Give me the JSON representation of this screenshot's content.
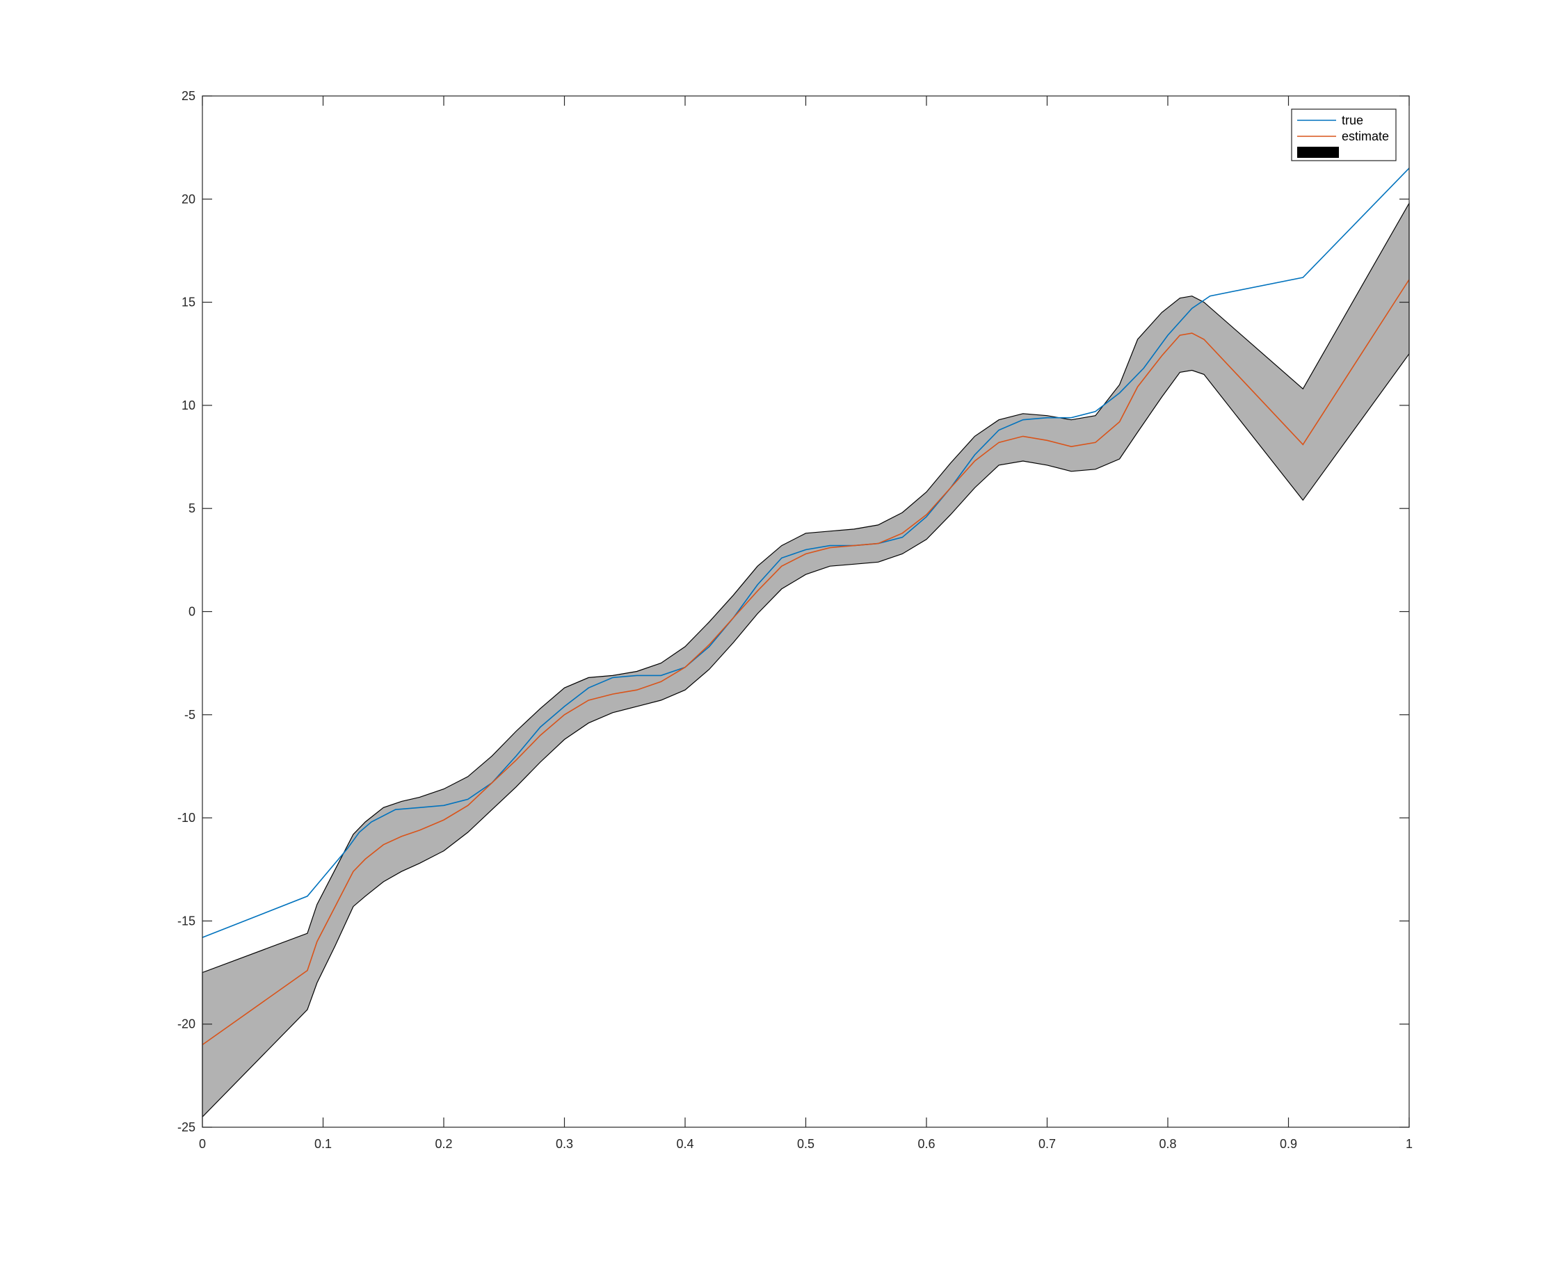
{
  "chart_data": {
    "type": "line",
    "title": "",
    "xlabel": "",
    "ylabel": "",
    "xlim": [
      0,
      1
    ],
    "ylim": [
      -25,
      25
    ],
    "xticks": [
      0,
      0.1,
      0.2,
      0.3,
      0.4,
      0.5,
      0.6,
      0.7,
      0.8,
      0.9,
      1
    ],
    "xtick_labels": [
      "0",
      "0.1",
      "0.2",
      "0.3",
      "0.4",
      "0.5",
      "0.6",
      "0.7",
      "0.8",
      "0.9",
      "1"
    ],
    "yticks": [
      -25,
      -20,
      -15,
      -10,
      -5,
      0,
      5,
      10,
      15,
      20,
      25
    ],
    "ytick_labels": [
      "-25",
      "-20",
      "-15",
      "-10",
      "-5",
      "0",
      "5",
      "10",
      "15",
      "20",
      "25"
    ],
    "grid": false,
    "legend_position": "top-right",
    "band": {
      "name": "",
      "fill_color": "#b2b2b2",
      "edge_color": "#000000",
      "x": [
        0,
        0.087,
        0.095,
        0.11,
        0.125,
        0.135,
        0.15,
        0.165,
        0.18,
        0.2,
        0.22,
        0.24,
        0.26,
        0.28,
        0.3,
        0.32,
        0.34,
        0.36,
        0.38,
        0.4,
        0.42,
        0.44,
        0.46,
        0.48,
        0.5,
        0.52,
        0.54,
        0.56,
        0.58,
        0.6,
        0.62,
        0.64,
        0.66,
        0.68,
        0.7,
        0.72,
        0.74,
        0.76,
        0.775,
        0.795,
        0.81,
        0.82,
        0.83,
        0.912,
        1
      ],
      "upper": [
        -17.5,
        -15.6,
        -14.2,
        -12.5,
        -10.8,
        -10.2,
        -9.5,
        -9.2,
        -9.0,
        -8.6,
        -8.0,
        -7.0,
        -5.8,
        -4.7,
        -3.7,
        -3.2,
        -3.1,
        -2.9,
        -2.5,
        -1.7,
        -0.5,
        0.8,
        2.2,
        3.2,
        3.8,
        3.9,
        4.0,
        4.2,
        4.8,
        5.8,
        7.2,
        8.5,
        9.3,
        9.6,
        9.5,
        9.3,
        9.5,
        11.0,
        13.2,
        14.5,
        15.2,
        15.3,
        15.0,
        10.8,
        19.8
      ],
      "lower": [
        -24.5,
        -19.3,
        -18.0,
        -16.2,
        -14.3,
        -13.8,
        -13.1,
        -12.6,
        -12.2,
        -11.6,
        -10.7,
        -9.6,
        -8.5,
        -7.3,
        -6.2,
        -5.4,
        -4.9,
        -4.6,
        -4.3,
        -3.8,
        -2.8,
        -1.5,
        -0.1,
        1.1,
        1.8,
        2.2,
        2.3,
        2.4,
        2.8,
        3.5,
        4.7,
        6.0,
        7.1,
        7.3,
        7.1,
        6.8,
        6.9,
        7.4,
        8.7,
        10.4,
        11.6,
        11.7,
        11.5,
        5.4,
        12.5
      ]
    },
    "series": [
      {
        "name": "true",
        "color": "#0072bd",
        "x": [
          0,
          0.087,
          0.12,
          0.13,
          0.14,
          0.16,
          0.18,
          0.2,
          0.22,
          0.24,
          0.26,
          0.28,
          0.3,
          0.32,
          0.34,
          0.36,
          0.38,
          0.4,
          0.42,
          0.44,
          0.46,
          0.48,
          0.5,
          0.52,
          0.54,
          0.56,
          0.58,
          0.6,
          0.62,
          0.64,
          0.66,
          0.68,
          0.7,
          0.72,
          0.74,
          0.76,
          0.78,
          0.8,
          0.82,
          0.835,
          0.912,
          1
        ],
        "values": [
          -15.8,
          -13.8,
          -11.5,
          -10.7,
          -10.2,
          -9.6,
          -9.5,
          -9.4,
          -9.1,
          -8.3,
          -7.0,
          -5.6,
          -4.6,
          -3.7,
          -3.2,
          -3.1,
          -3.1,
          -2.7,
          -1.7,
          -0.3,
          1.3,
          2.6,
          3.0,
          3.2,
          3.2,
          3.3,
          3.6,
          4.6,
          6.0,
          7.6,
          8.8,
          9.3,
          9.4,
          9.4,
          9.7,
          10.6,
          11.8,
          13.4,
          14.7,
          15.3,
          16.2,
          21.5
        ]
      },
      {
        "name": "estimate",
        "color": "#d95319",
        "x": [
          0,
          0.087,
          0.095,
          0.11,
          0.125,
          0.135,
          0.15,
          0.165,
          0.18,
          0.2,
          0.22,
          0.24,
          0.26,
          0.28,
          0.3,
          0.32,
          0.34,
          0.36,
          0.38,
          0.4,
          0.42,
          0.44,
          0.46,
          0.48,
          0.5,
          0.52,
          0.54,
          0.56,
          0.58,
          0.6,
          0.62,
          0.64,
          0.66,
          0.68,
          0.7,
          0.72,
          0.74,
          0.76,
          0.775,
          0.795,
          0.81,
          0.82,
          0.83,
          0.912,
          1
        ],
        "values": [
          -21.0,
          -17.4,
          -16.0,
          -14.3,
          -12.6,
          -12.0,
          -11.3,
          -10.9,
          -10.6,
          -10.1,
          -9.4,
          -8.3,
          -7.2,
          -6.0,
          -5.0,
          -4.3,
          -4.0,
          -3.8,
          -3.4,
          -2.7,
          -1.6,
          -0.3,
          1.0,
          2.2,
          2.8,
          3.1,
          3.2,
          3.3,
          3.8,
          4.7,
          6.0,
          7.3,
          8.2,
          8.5,
          8.3,
          8.0,
          8.2,
          9.2,
          10.9,
          12.4,
          13.4,
          13.5,
          13.2,
          8.1,
          16.1
        ]
      }
    ],
    "legend_entries": [
      "true",
      "estimate",
      ""
    ]
  }
}
